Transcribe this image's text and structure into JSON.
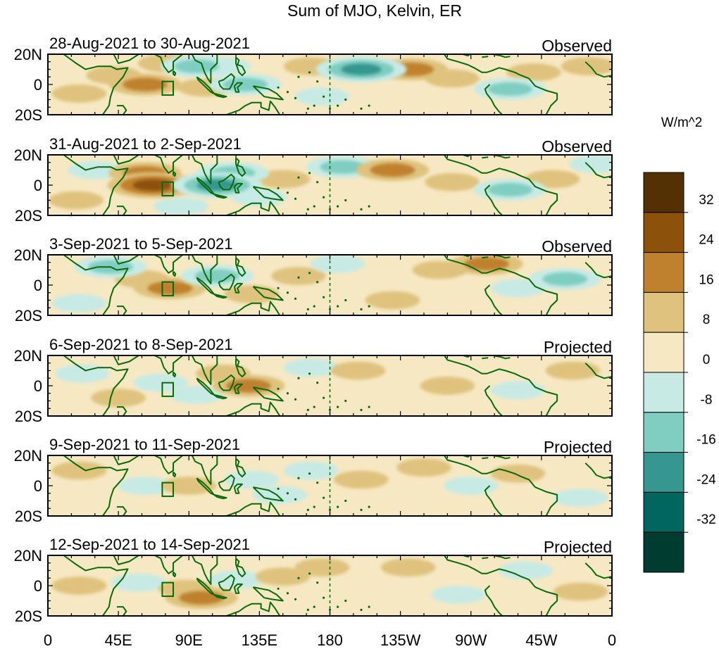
{
  "chart_data": {
    "type": "heatmap",
    "title": "Sum of MJO, Kelvin, ER",
    "units_label": "W/m^2",
    "x_ticks": [
      "0",
      "45E",
      "90E",
      "135E",
      "180",
      "135W",
      "90W",
      "45W",
      "0"
    ],
    "x_range_deg": [
      0,
      360
    ],
    "y_ticks": [
      "20N",
      "0",
      "20S"
    ],
    "y_range_deg": [
      -20,
      20
    ],
    "colorbar": {
      "levels": [
        "32",
        "24",
        "16",
        "8",
        "0",
        "-8",
        "-16",
        "-24",
        "-32"
      ],
      "colors": [
        "#543005",
        "#8c510a",
        "#bf812d",
        "#dfc27d",
        "#f6e8c3",
        "#c7eae5",
        "#80cdc1",
        "#35978f",
        "#01665e",
        "#003c30"
      ]
    },
    "panels": [
      {
        "date_range": "28-Aug-2021 to 30-Aug-2021",
        "status": "Observed",
        "anomalies": [
          {
            "lon": 62,
            "lat": 0,
            "value": 16
          },
          {
            "lon": 42,
            "lat": 6,
            "value": 8
          },
          {
            "lon": 75,
            "lat": 14,
            "value": 8
          },
          {
            "lon": 95,
            "lat": 12,
            "value": -16
          },
          {
            "lon": 100,
            "lat": -2,
            "value": 8
          },
          {
            "lon": 126,
            "lat": 0,
            "value": -16
          },
          {
            "lon": 112,
            "lat": 12,
            "value": -8
          },
          {
            "lon": 168,
            "lat": 12,
            "value": 8
          },
          {
            "lon": 200,
            "lat": 10,
            "value": -24
          },
          {
            "lon": 232,
            "lat": 10,
            "value": 16
          },
          {
            "lon": 258,
            "lat": 4,
            "value": 8
          },
          {
            "lon": 295,
            "lat": -3,
            "value": -16
          },
          {
            "lon": 310,
            "lat": 8,
            "value": 8
          },
          {
            "lon": 175,
            "lat": -8,
            "value": -8
          },
          {
            "lon": 20,
            "lat": -6,
            "value": 8
          },
          {
            "lon": 345,
            "lat": 12,
            "value": 8
          }
        ]
      },
      {
        "date_range": "31-Aug-2021 to 2-Sep-2021",
        "status": "Observed",
        "anomalies": [
          {
            "lon": 67,
            "lat": 0,
            "value": 24
          },
          {
            "lon": 62,
            "lat": 8,
            "value": 16
          },
          {
            "lon": 108,
            "lat": 0,
            "value": -24
          },
          {
            "lon": 118,
            "lat": 8,
            "value": -16
          },
          {
            "lon": 135,
            "lat": -8,
            "value": -8
          },
          {
            "lon": 150,
            "lat": 4,
            "value": 8
          },
          {
            "lon": 188,
            "lat": 12,
            "value": -16
          },
          {
            "lon": 220,
            "lat": 10,
            "value": 16
          },
          {
            "lon": 258,
            "lat": 2,
            "value": 8
          },
          {
            "lon": 295,
            "lat": -3,
            "value": -16
          },
          {
            "lon": 322,
            "lat": 4,
            "value": 8
          },
          {
            "lon": 30,
            "lat": 10,
            "value": -8
          },
          {
            "lon": 18,
            "lat": -10,
            "value": 8
          },
          {
            "lon": 85,
            "lat": -14,
            "value": -8
          },
          {
            "lon": 350,
            "lat": 14,
            "value": -8
          }
        ]
      },
      {
        "date_range": "3-Sep-2021 to 5-Sep-2021",
        "status": "Observed",
        "anomalies": [
          {
            "lon": 78,
            "lat": -2,
            "value": 16
          },
          {
            "lon": 60,
            "lat": 4,
            "value": 8
          },
          {
            "lon": 108,
            "lat": 6,
            "value": -16
          },
          {
            "lon": 40,
            "lat": 12,
            "value": -16
          },
          {
            "lon": 130,
            "lat": -6,
            "value": 8
          },
          {
            "lon": 160,
            "lat": 6,
            "value": 8
          },
          {
            "lon": 185,
            "lat": 14,
            "value": -8
          },
          {
            "lon": 250,
            "lat": 10,
            "value": 8
          },
          {
            "lon": 280,
            "lat": 14,
            "value": 16
          },
          {
            "lon": 300,
            "lat": -2,
            "value": -8
          },
          {
            "lon": 330,
            "lat": 4,
            "value": -16
          },
          {
            "lon": 220,
            "lat": -10,
            "value": 8
          },
          {
            "lon": 20,
            "lat": -12,
            "value": -8
          }
        ]
      },
      {
        "date_range": "6-Sep-2021 to 8-Sep-2021",
        "status": "Projected",
        "anomalies": [
          {
            "lon": 128,
            "lat": 0,
            "value": 16
          },
          {
            "lon": 112,
            "lat": 8,
            "value": 8
          },
          {
            "lon": 72,
            "lat": 2,
            "value": -8
          },
          {
            "lon": 95,
            "lat": -6,
            "value": -8
          },
          {
            "lon": 168,
            "lat": 12,
            "value": -8
          },
          {
            "lon": 198,
            "lat": 10,
            "value": 8
          },
          {
            "lon": 255,
            "lat": 0,
            "value": 8
          },
          {
            "lon": 300,
            "lat": -3,
            "value": -8
          },
          {
            "lon": 335,
            "lat": 10,
            "value": 8
          },
          {
            "lon": 22,
            "lat": 8,
            "value": -8
          },
          {
            "lon": 45,
            "lat": -8,
            "value": 8
          }
        ]
      },
      {
        "date_range": "9-Sep-2021 to 11-Sep-2021",
        "status": "Projected",
        "anomalies": [
          {
            "lon": 62,
            "lat": 0,
            "value": -8
          },
          {
            "lon": 90,
            "lat": 0,
            "value": 8
          },
          {
            "lon": 130,
            "lat": 4,
            "value": -8
          },
          {
            "lon": 148,
            "lat": -6,
            "value": -8
          },
          {
            "lon": 168,
            "lat": 10,
            "value": -8
          },
          {
            "lon": 200,
            "lat": 4,
            "value": 8
          },
          {
            "lon": 240,
            "lat": 12,
            "value": 8
          },
          {
            "lon": 270,
            "lat": 0,
            "value": -8
          },
          {
            "lon": 300,
            "lat": 8,
            "value": 8
          },
          {
            "lon": 20,
            "lat": 10,
            "value": 8
          },
          {
            "lon": 340,
            "lat": -8,
            "value": -8
          }
        ]
      },
      {
        "date_range": "12-Sep-2021 to 14-Sep-2021",
        "status": "Projected",
        "anomalies": [
          {
            "lon": 20,
            "lat": 0,
            "value": 8
          },
          {
            "lon": 58,
            "lat": 2,
            "value": -8
          },
          {
            "lon": 88,
            "lat": -2,
            "value": 8
          },
          {
            "lon": 98,
            "lat": -8,
            "value": 16
          },
          {
            "lon": 120,
            "lat": 4,
            "value": -8
          },
          {
            "lon": 150,
            "lat": 6,
            "value": 8
          },
          {
            "lon": 175,
            "lat": 12,
            "value": 8
          },
          {
            "lon": 230,
            "lat": 12,
            "value": 8
          },
          {
            "lon": 262,
            "lat": -6,
            "value": -8
          },
          {
            "lon": 305,
            "lat": 10,
            "value": -8
          },
          {
            "lon": 340,
            "lat": -4,
            "value": 8
          }
        ]
      }
    ]
  }
}
